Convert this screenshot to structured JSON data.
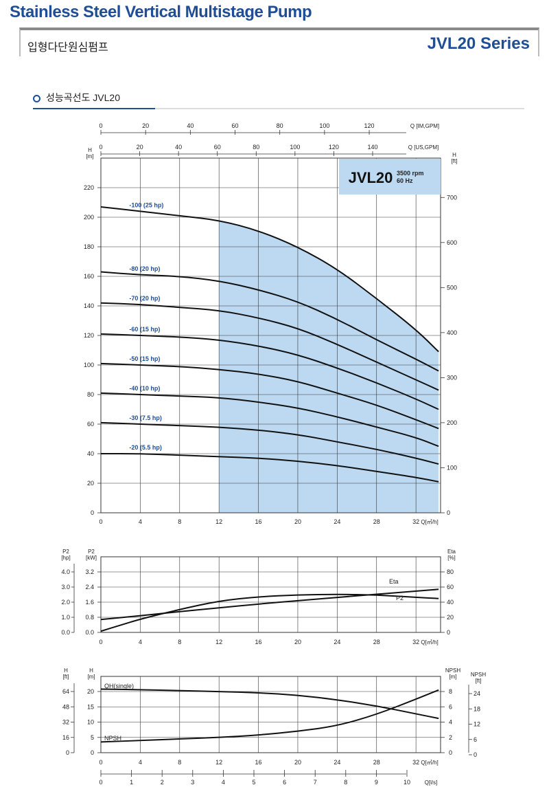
{
  "header": {
    "title": "Stainless Steel Vertical Multistage Pump",
    "subtitle_ko": "입형다단원심펌프",
    "series": "JVL20 Series",
    "section": "성능곡선도 JVL20"
  },
  "badge": {
    "model": "JVL20",
    "rpm": "3500 rpm",
    "hz": "60 Hz"
  },
  "colors": {
    "brand": "#1f4e96",
    "region": "#bcd9f1",
    "label": "#1f4e96"
  },
  "axes": {
    "q_im_gpm": {
      "label": "Q [IM,GPM]",
      "ticks": [
        "0",
        "20",
        "40",
        "60",
        "80",
        "100",
        "120"
      ]
    },
    "q_us_gpm": {
      "label": "Q [US,GPM]",
      "ticks": [
        "0",
        "20",
        "40",
        "60",
        "80",
        "100",
        "120",
        "140"
      ]
    },
    "q_m3h": {
      "label": "Q[㎥/h]",
      "ticks": [
        "0",
        "4",
        "8",
        "12",
        "16",
        "20",
        "24",
        "28",
        "32"
      ]
    },
    "q_ls": {
      "label": "Q[l/s]",
      "ticks": [
        "0",
        "1",
        "2",
        "3",
        "4",
        "5",
        "6",
        "7",
        "8",
        "9",
        "10"
      ]
    },
    "h_m_label": "H\n[m]",
    "h_ft_label": "H\n[ft]",
    "p2_hp_label": "P2\n[hp]",
    "p2_kw_label": "P2\n[kW]",
    "eta_label": "Eta\n[%]",
    "npsh_m_label": "NPSH\n[m]",
    "npsh_ft_label": "NPSH\n[ft]"
  },
  "chart_data": [
    {
      "type": "line",
      "name": "head",
      "xlabel": "Q[㎥/h]",
      "ylabel": "H [m]",
      "xlim": [
        0,
        34.5
      ],
      "ylim": [
        0,
        240
      ],
      "y_ticks": [
        0,
        20,
        40,
        60,
        80,
        100,
        120,
        140,
        160,
        180,
        200,
        220
      ],
      "y2_ticks": [
        0,
        100,
        200,
        300,
        400,
        500,
        600,
        700
      ],
      "y2_label": "H [ft]",
      "operating_range": [
        12,
        34.3
      ],
      "series": [
        {
          "name": "-100 (25 hp)",
          "label_x": 4,
          "x": [
            0,
            4,
            8,
            12,
            16,
            20,
            24,
            28,
            32,
            34.3
          ],
          "y": [
            207,
            204,
            201,
            198,
            191,
            180,
            165,
            145,
            124,
            109
          ]
        },
        {
          "name": "-80 (20 hp)",
          "label_x": 4,
          "x": [
            0,
            4,
            8,
            12,
            16,
            20,
            24,
            28,
            32,
            34.3
          ],
          "y": [
            163,
            161,
            160,
            157,
            151,
            143,
            131,
            117,
            104,
            96
          ]
        },
        {
          "name": "-70 (20 hp)",
          "label_x": 4,
          "x": [
            0,
            4,
            8,
            12,
            16,
            20,
            24,
            28,
            32,
            34.3
          ],
          "y": [
            142,
            141,
            139,
            137,
            132,
            125,
            114,
            102,
            90,
            83
          ]
        },
        {
          "name": "-60 (15 hp)",
          "label_x": 4,
          "x": [
            0,
            4,
            8,
            12,
            16,
            20,
            24,
            28,
            32,
            34.3
          ],
          "y": [
            121,
            120,
            119,
            117,
            113,
            107,
            98,
            88,
            77,
            70
          ]
        },
        {
          "name": "-50 (15 hp)",
          "label_x": 4,
          "x": [
            0,
            4,
            8,
            12,
            16,
            20,
            24,
            28,
            32,
            34.3
          ],
          "y": [
            101,
            100,
            99,
            97,
            94,
            89,
            81,
            73,
            63,
            57
          ]
        },
        {
          "name": "-40 (10 hp)",
          "label_x": 4,
          "x": [
            0,
            4,
            8,
            12,
            16,
            20,
            24,
            28,
            32,
            34.3
          ],
          "y": [
            81,
            80,
            79,
            78,
            75,
            71,
            65,
            58,
            51,
            45
          ]
        },
        {
          "name": "-30 (7.5 hp)",
          "label_x": 4,
          "x": [
            0,
            4,
            8,
            12,
            16,
            20,
            24,
            28,
            32,
            34.3
          ],
          "y": [
            61,
            60,
            59,
            58,
            56,
            53,
            48,
            43,
            37,
            33
          ]
        },
        {
          "name": "-20 (5.5 hp)",
          "label_x": 4,
          "x": [
            0,
            4,
            8,
            12,
            16,
            20,
            24,
            28,
            32,
            34.3
          ],
          "y": [
            40,
            40,
            39,
            38,
            37,
            35,
            32,
            28,
            24,
            21
          ]
        }
      ]
    },
    {
      "type": "line",
      "name": "power-efficiency",
      "xlabel": "Q[㎥/h]",
      "xlim": [
        0,
        34.5
      ],
      "y_left_hp_ticks": [
        "0.0",
        "1.0",
        "2.0",
        "3.0",
        "4.0"
      ],
      "y_left_kw_ticks": [
        "0.0",
        "0.8",
        "1.6",
        "2.4",
        "3.2"
      ],
      "y_right_eta_ticks": [
        "0",
        "20",
        "40",
        "60",
        "80"
      ],
      "series": [
        {
          "name": "Eta",
          "unit": "%",
          "x": [
            0,
            2,
            4,
            8,
            12,
            16,
            20,
            24,
            28,
            32,
            34.3
          ],
          "y": [
            2,
            12,
            22,
            38,
            52,
            59,
            62,
            63,
            62,
            58,
            56
          ]
        },
        {
          "name": "P2",
          "unit": "kW",
          "x": [
            0,
            4,
            8,
            12,
            16,
            20,
            24,
            28,
            32,
            34.3
          ],
          "y": [
            0.68,
            0.88,
            1.1,
            1.3,
            1.5,
            1.68,
            1.85,
            2.02,
            2.18,
            2.28
          ]
        }
      ]
    },
    {
      "type": "line",
      "name": "single-stage-npsh",
      "xlabel": "Q[㎥/h]",
      "xlim": [
        0,
        34.5
      ],
      "y_left_ft_ticks": [
        "0",
        "16",
        "32",
        "48",
        "64"
      ],
      "y_left_m_ticks": [
        "0",
        "5",
        "10",
        "15",
        "20"
      ],
      "y_right_m_ticks": [
        "0",
        "2",
        "4",
        "6",
        "8"
      ],
      "y_right_ft_ticks": [
        "0",
        "6",
        "12",
        "18",
        "24"
      ],
      "series": [
        {
          "name": "QH(single)",
          "unit": "m",
          "x": [
            0,
            4,
            8,
            12,
            16,
            20,
            24,
            28,
            32,
            34.3
          ],
          "y": [
            20.8,
            20.6,
            20.3,
            20.0,
            19.6,
            18.8,
            17.3,
            15.3,
            12.7,
            11.2
          ]
        },
        {
          "name": "NPSH",
          "unit": "m",
          "x": [
            0,
            4,
            8,
            12,
            16,
            20,
            24,
            28,
            32,
            34.3
          ],
          "y": [
            1.4,
            1.6,
            1.8,
            2.0,
            2.3,
            2.8,
            3.5,
            5.0,
            7.0,
            8.2
          ]
        }
      ]
    }
  ]
}
